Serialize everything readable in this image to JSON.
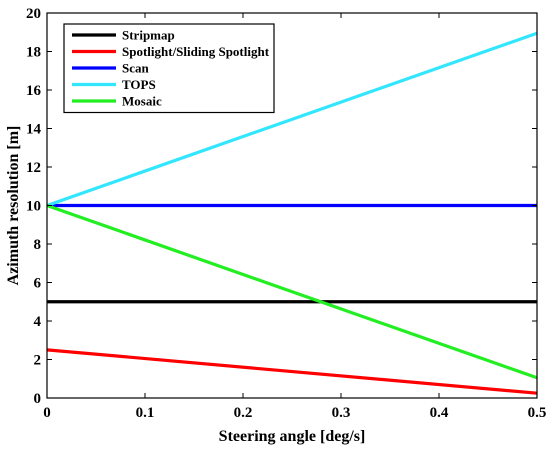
{
  "chart_data": {
    "type": "line",
    "xlabel": "Steering angle [deg/s]",
    "ylabel": "Azimuth resolution [m]",
    "xlim": [
      0,
      0.5
    ],
    "ylim": [
      0,
      20
    ],
    "xticks": [
      "0",
      "0.1",
      "0.2",
      "0.3",
      "0.4",
      "0.5"
    ],
    "yticks": [
      "0",
      "2",
      "4",
      "6",
      "8",
      "10",
      "12",
      "14",
      "16",
      "18",
      "20"
    ],
    "grid": "off",
    "legend_position": "top-left",
    "series": [
      {
        "name": "Stripmap",
        "color": "#000000",
        "x": [
          0,
          0.5
        ],
        "y": [
          5,
          5
        ]
      },
      {
        "name": "Spotlight/Sliding Spotlight",
        "color": "#ff0000",
        "x": [
          0,
          0.5
        ],
        "y": [
          2.5,
          0.25
        ]
      },
      {
        "name": "Scan",
        "color": "#0000ff",
        "x": [
          0,
          0.5
        ],
        "y": [
          10,
          10
        ]
      },
      {
        "name": "TOPS",
        "color": "#33e6ff",
        "x": [
          0,
          0.5
        ],
        "y": [
          10,
          18.95
        ]
      },
      {
        "name": "Mosaic",
        "color": "#22ee22",
        "x": [
          0,
          0.5
        ],
        "y": [
          10,
          1.05
        ]
      }
    ]
  }
}
